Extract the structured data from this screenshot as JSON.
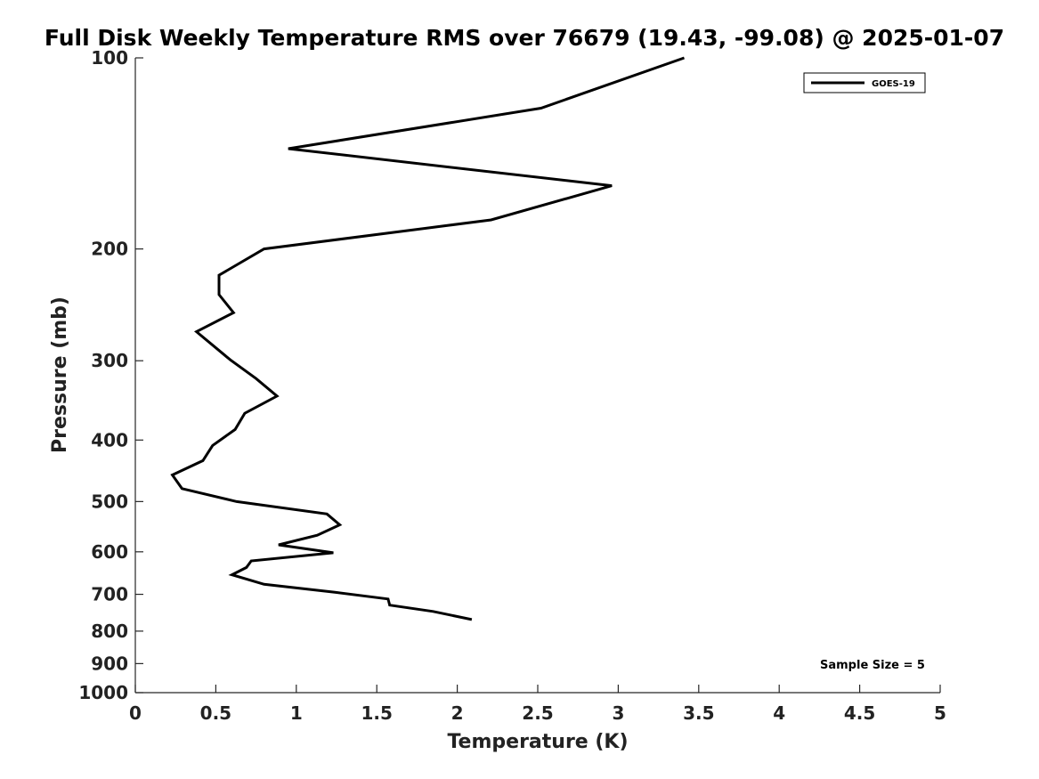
{
  "chart_data": {
    "type": "line",
    "title": "Full Disk Weekly Temperature RMS over 76679 (19.43, -99.08) @ 2025-01-07",
    "xlabel": "Temperature (K)",
    "ylabel": "Pressure (mb)",
    "xlim": [
      0,
      5
    ],
    "ylim": [
      1000,
      100
    ],
    "y_scale": "log",
    "y_reversed": true,
    "grid": false,
    "legend_position": "top-right",
    "x_ticks": [
      "0",
      "0.5",
      "1",
      "1.5",
      "2",
      "2.5",
      "3",
      "3.5",
      "4",
      "4.5",
      "5"
    ],
    "y_ticks": [
      "100",
      "200",
      "300",
      "400",
      "500",
      "600",
      "700",
      "800",
      "900",
      "1000"
    ],
    "series": [
      {
        "name": "GOES-19",
        "color": "#000000",
        "points": [
          {
            "x": 3.41,
            "y": 100
          },
          {
            "x": 2.52,
            "y": 120
          },
          {
            "x": 0.95,
            "y": 139
          },
          {
            "x": 2.96,
            "y": 159
          },
          {
            "x": 2.21,
            "y": 180
          },
          {
            "x": 0.8,
            "y": 200
          },
          {
            "x": 0.52,
            "y": 220
          },
          {
            "x": 0.52,
            "y": 236
          },
          {
            "x": 0.61,
            "y": 252
          },
          {
            "x": 0.38,
            "y": 270
          },
          {
            "x": 0.59,
            "y": 299
          },
          {
            "x": 0.75,
            "y": 320
          },
          {
            "x": 0.88,
            "y": 341
          },
          {
            "x": 0.68,
            "y": 363
          },
          {
            "x": 0.62,
            "y": 385
          },
          {
            "x": 0.48,
            "y": 408
          },
          {
            "x": 0.42,
            "y": 431
          },
          {
            "x": 0.23,
            "y": 454
          },
          {
            "x": 0.29,
            "y": 477
          },
          {
            "x": 0.63,
            "y": 500
          },
          {
            "x": 1.19,
            "y": 523
          },
          {
            "x": 1.27,
            "y": 544
          },
          {
            "x": 1.13,
            "y": 565
          },
          {
            "x": 0.89,
            "y": 585
          },
          {
            "x": 1.23,
            "y": 602
          },
          {
            "x": 0.72,
            "y": 620
          },
          {
            "x": 0.69,
            "y": 635
          },
          {
            "x": 0.6,
            "y": 652
          },
          {
            "x": 0.8,
            "y": 675
          },
          {
            "x": 1.24,
            "y": 695
          },
          {
            "x": 1.57,
            "y": 712
          },
          {
            "x": 1.58,
            "y": 728
          },
          {
            "x": 1.85,
            "y": 745
          },
          {
            "x": 2.09,
            "y": 767
          }
        ]
      }
    ],
    "annotations": [
      "Sample Size = 5"
    ]
  }
}
